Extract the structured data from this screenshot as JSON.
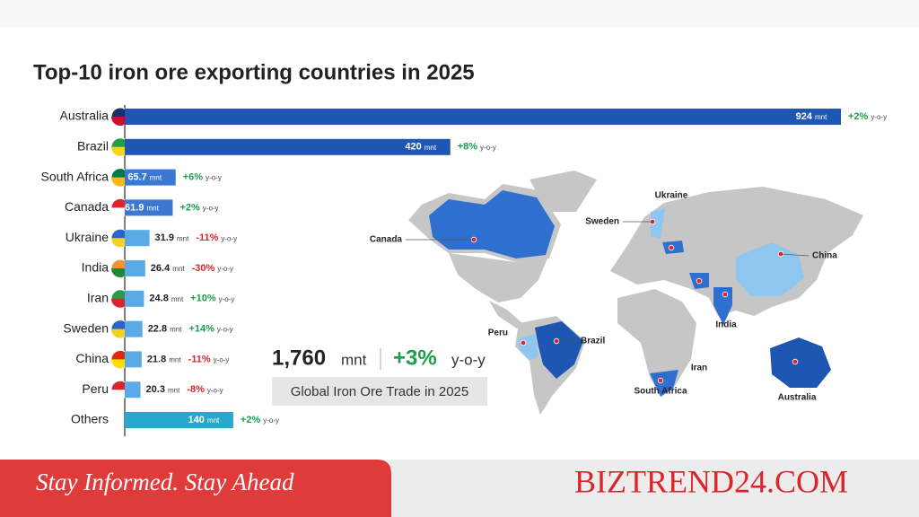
{
  "chart_data": {
    "type": "bar",
    "orientation": "horizontal",
    "title": "Top-10 iron ore exporting countries in 2025",
    "categories": [
      "Australia",
      "Brazil",
      "South Africa",
      "Canada",
      "Ukraine",
      "India",
      "Iran",
      "Sweden",
      "China",
      "Peru",
      "Others"
    ],
    "values": [
      924,
      420,
      65.7,
      61.9,
      31.9,
      26.4,
      24.8,
      22.8,
      21.8,
      20.3,
      140
    ],
    "unit": "mnt",
    "colors": [
      "#1e56b3",
      "#1e56b3",
      "#3a78d4",
      "#3a78d4",
      "#5aaae8",
      "#5aaae8",
      "#5aaae8",
      "#5aaae8",
      "#5aaae8",
      "#5aaae8",
      "#27a9cc"
    ],
    "changes": [
      2,
      8,
      6,
      2,
      -11,
      -30,
      10,
      14,
      -11,
      -8,
      2
    ],
    "change_labels": [
      "+2%",
      "+8%",
      "+6%",
      "+2%",
      "-11%",
      "-30%",
      "+10%",
      "+14%",
      "-11%",
      "-8%",
      "+2%"
    ],
    "change_unit": "y-o-y",
    "summary": {
      "total": "1,760",
      "unit": "mnt",
      "change": "+3%",
      "change_unit": "y-o-y",
      "caption": "Global Iron Ore Trade in 2025"
    }
  },
  "footer": {
    "tagline": "Stay Informed. Stay Ahead",
    "brand": "BIZTREND24.COM"
  }
}
